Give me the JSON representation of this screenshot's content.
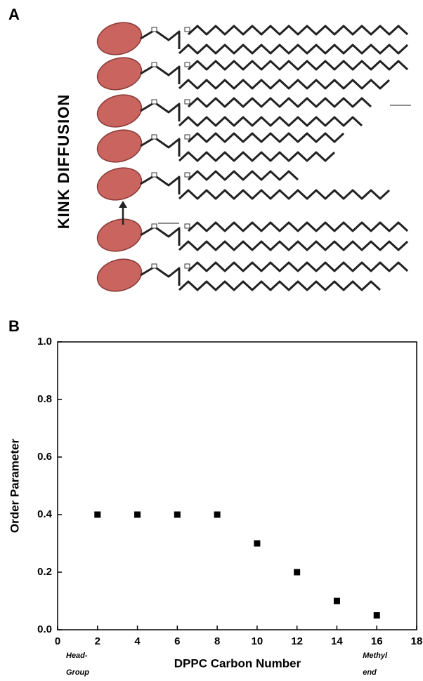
{
  "panel_a": {
    "label": "A",
    "text": "KINK DIFFUSION"
  },
  "chart_data": {
    "type": "scatter",
    "panel_label": "B",
    "x_label": "DPPC Carbon Number",
    "y_label": "Order Parameter",
    "x": [
      2,
      4,
      6,
      8,
      10,
      12,
      14,
      16
    ],
    "values": [
      0.4,
      0.4,
      0.4,
      0.4,
      0.3,
      0.2,
      0.1,
      0.05
    ],
    "color": "#000000",
    "xlim": [
      0,
      18
    ],
    "xticks": [
      0,
      2,
      4,
      6,
      8,
      10,
      12,
      14,
      16,
      18
    ],
    "ylim": [
      0,
      1
    ],
    "yticks": [
      {
        "value": 0,
        "label": "0.0"
      },
      0.2,
      0.4,
      0.6,
      0.8,
      {
        "value": 1,
        "label": "1.0"
      }
    ],
    "annotations": [
      [
        "Head-",
        "Group"
      ],
      [
        "Methyl",
        "end"
      ]
    ]
  }
}
